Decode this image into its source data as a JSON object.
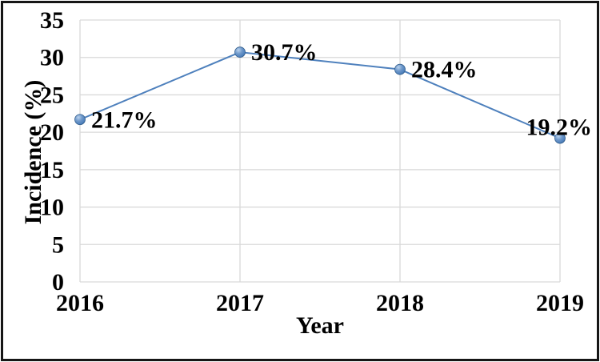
{
  "window": {
    "background": "#ffffff",
    "border_color": "#161616"
  },
  "chart_data": {
    "type": "line",
    "title": "",
    "categories": [
      "2016",
      "2017",
      "2018",
      "2019"
    ],
    "series": [
      {
        "name": "Incidence",
        "values": [
          21.7,
          30.7,
          28.4,
          19.2
        ]
      }
    ],
    "point_labels": [
      "21.7%",
      "30.7%",
      "28.4%",
      "19.2%"
    ],
    "label_placement": [
      "right",
      "right",
      "right",
      "above-end"
    ],
    "xlabel": "Year",
    "ylabel": "Incidence (%)",
    "ylim": [
      0,
      35
    ],
    "yticks": [
      0,
      5,
      10,
      15,
      20,
      25,
      30,
      35
    ],
    "grid": true,
    "legend": "none",
    "colors": {
      "line": "#4F81BD",
      "marker_fill": "#4F81BD",
      "marker_highlight": "#BBD3EE",
      "marker_edge": "#35608E",
      "gridline": "#D9D9D9",
      "text": "#000000"
    }
  }
}
